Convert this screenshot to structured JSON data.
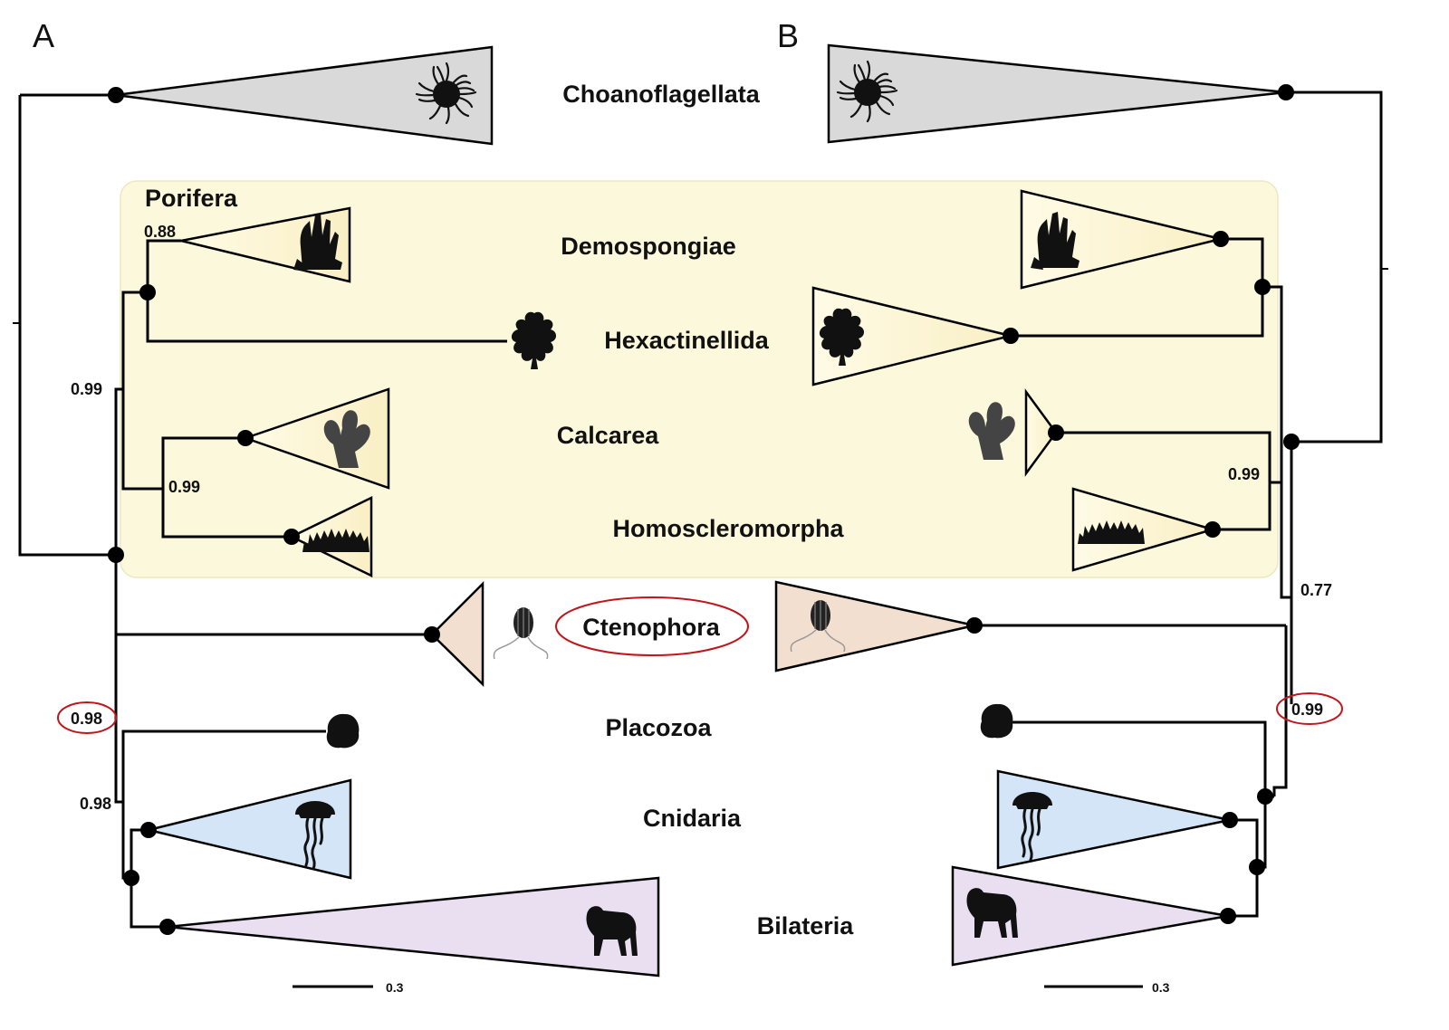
{
  "panels": {
    "a": "A",
    "b": "B"
  },
  "clades": {
    "choanoflagellata": "Choanoflagellata",
    "porifera": "Porifera",
    "demospongiae": "Demospongiae",
    "hexactinellida": "Hexactinellida",
    "calcarea": "Calcarea",
    "homoscleromorpha": "Homoscleromorpha",
    "ctenophora": "Ctenophora",
    "placozoa": "Placozoa",
    "cnidaria": "Cnidaria",
    "bilateria": "Bilateria"
  },
  "support_values": {
    "a_demospongiae": "0.88",
    "a_porifera_root": "0.99",
    "a_calcarea_homoscleromorpha": "0.99",
    "a_ctenophora_split": "0.98",
    "a_placozoa_split": "0.98",
    "b_calcarea_homoscleromorpha": "0.99",
    "b_porifera_ctenophora": "0.77",
    "b_ctenophora_split": "0.99"
  },
  "highlighted_supports": [
    "a_ctenophora_split",
    "b_ctenophora_split"
  ],
  "highlighted_clade": "ctenophora",
  "scale_bars": {
    "a": "0.3",
    "b": "0.3"
  },
  "colors": {
    "choanoflagellata": "#d9d9d9",
    "porifera_box": "#fbf8dc",
    "sponge_triangle": "#fdf6d8",
    "ctenophora": "#f2dfd0",
    "cnidaria": "#d3e5f7",
    "bilateria": "#e9dff0",
    "highlight": "#c0161b"
  },
  "icons": {
    "choanoflagellata": "choanoflagellate-colony-icon",
    "demospongiae": "demosponge-icon",
    "hexactinellida": "glass-sponge-icon",
    "calcarea": "calcareous-sponge-icon",
    "homoscleromorpha": "homoscleromorph-sponge-icon",
    "ctenophora": "comb-jelly-icon",
    "placozoa": "placozoan-icon",
    "cnidaria": "jellyfish-icon",
    "bilateria": "gorilla-icon"
  }
}
